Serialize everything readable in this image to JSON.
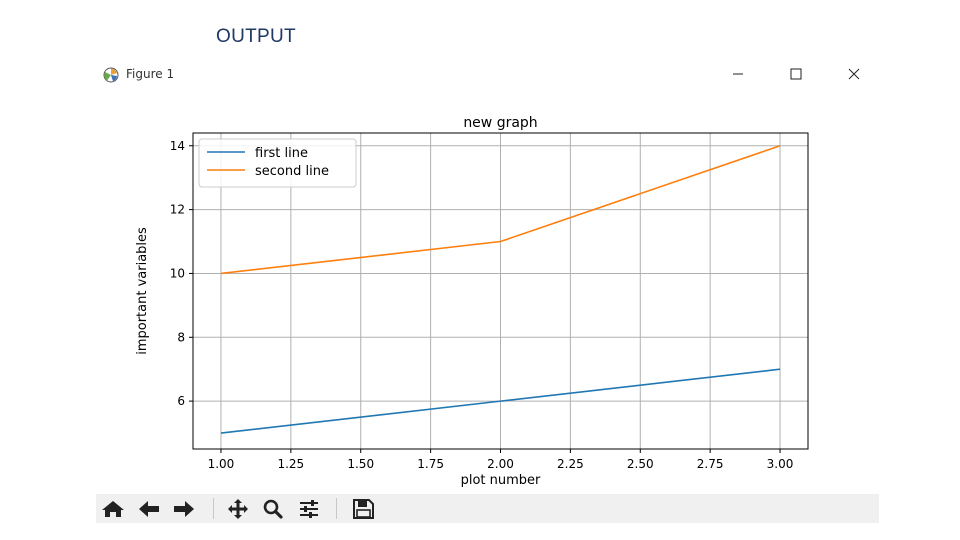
{
  "slide": {
    "heading": "OUTPUT"
  },
  "window": {
    "title": "Figure 1",
    "minimize_glyph": "—",
    "maximize_glyph": "☐",
    "close_glyph": "✕"
  },
  "toolbar": {
    "icons": [
      "home-icon",
      "back-arrow-icon",
      "forward-arrow-icon",
      "pan-icon",
      "zoom-icon",
      "configure-subplots-icon",
      "save-icon"
    ]
  },
  "chart_data": {
    "type": "line",
    "title": "new graph",
    "xlabel": "plot number",
    "ylabel": "important variables",
    "xlim": [
      0.9,
      3.1
    ],
    "ylim": [
      4.5,
      14.4
    ],
    "xticks": [
      1.0,
      1.25,
      1.5,
      1.75,
      2.0,
      2.25,
      2.5,
      2.75,
      3.0
    ],
    "xtick_labels": [
      "1.00",
      "1.25",
      "1.50",
      "1.75",
      "2.00",
      "2.25",
      "2.50",
      "2.75",
      "3.00"
    ],
    "yticks": [
      6,
      8,
      10,
      12,
      14
    ],
    "ytick_labels": [
      "6",
      "8",
      "10",
      "12",
      "14"
    ],
    "grid": true,
    "legend_position": "top-left",
    "series": [
      {
        "name": "first line",
        "x": [
          1,
          2,
          3
        ],
        "y": [
          5,
          6,
          7
        ],
        "color": "#1f77b4"
      },
      {
        "name": "second line",
        "x": [
          1,
          2,
          3
        ],
        "y": [
          10,
          11,
          14
        ],
        "color": "#ff7f0e"
      }
    ]
  }
}
